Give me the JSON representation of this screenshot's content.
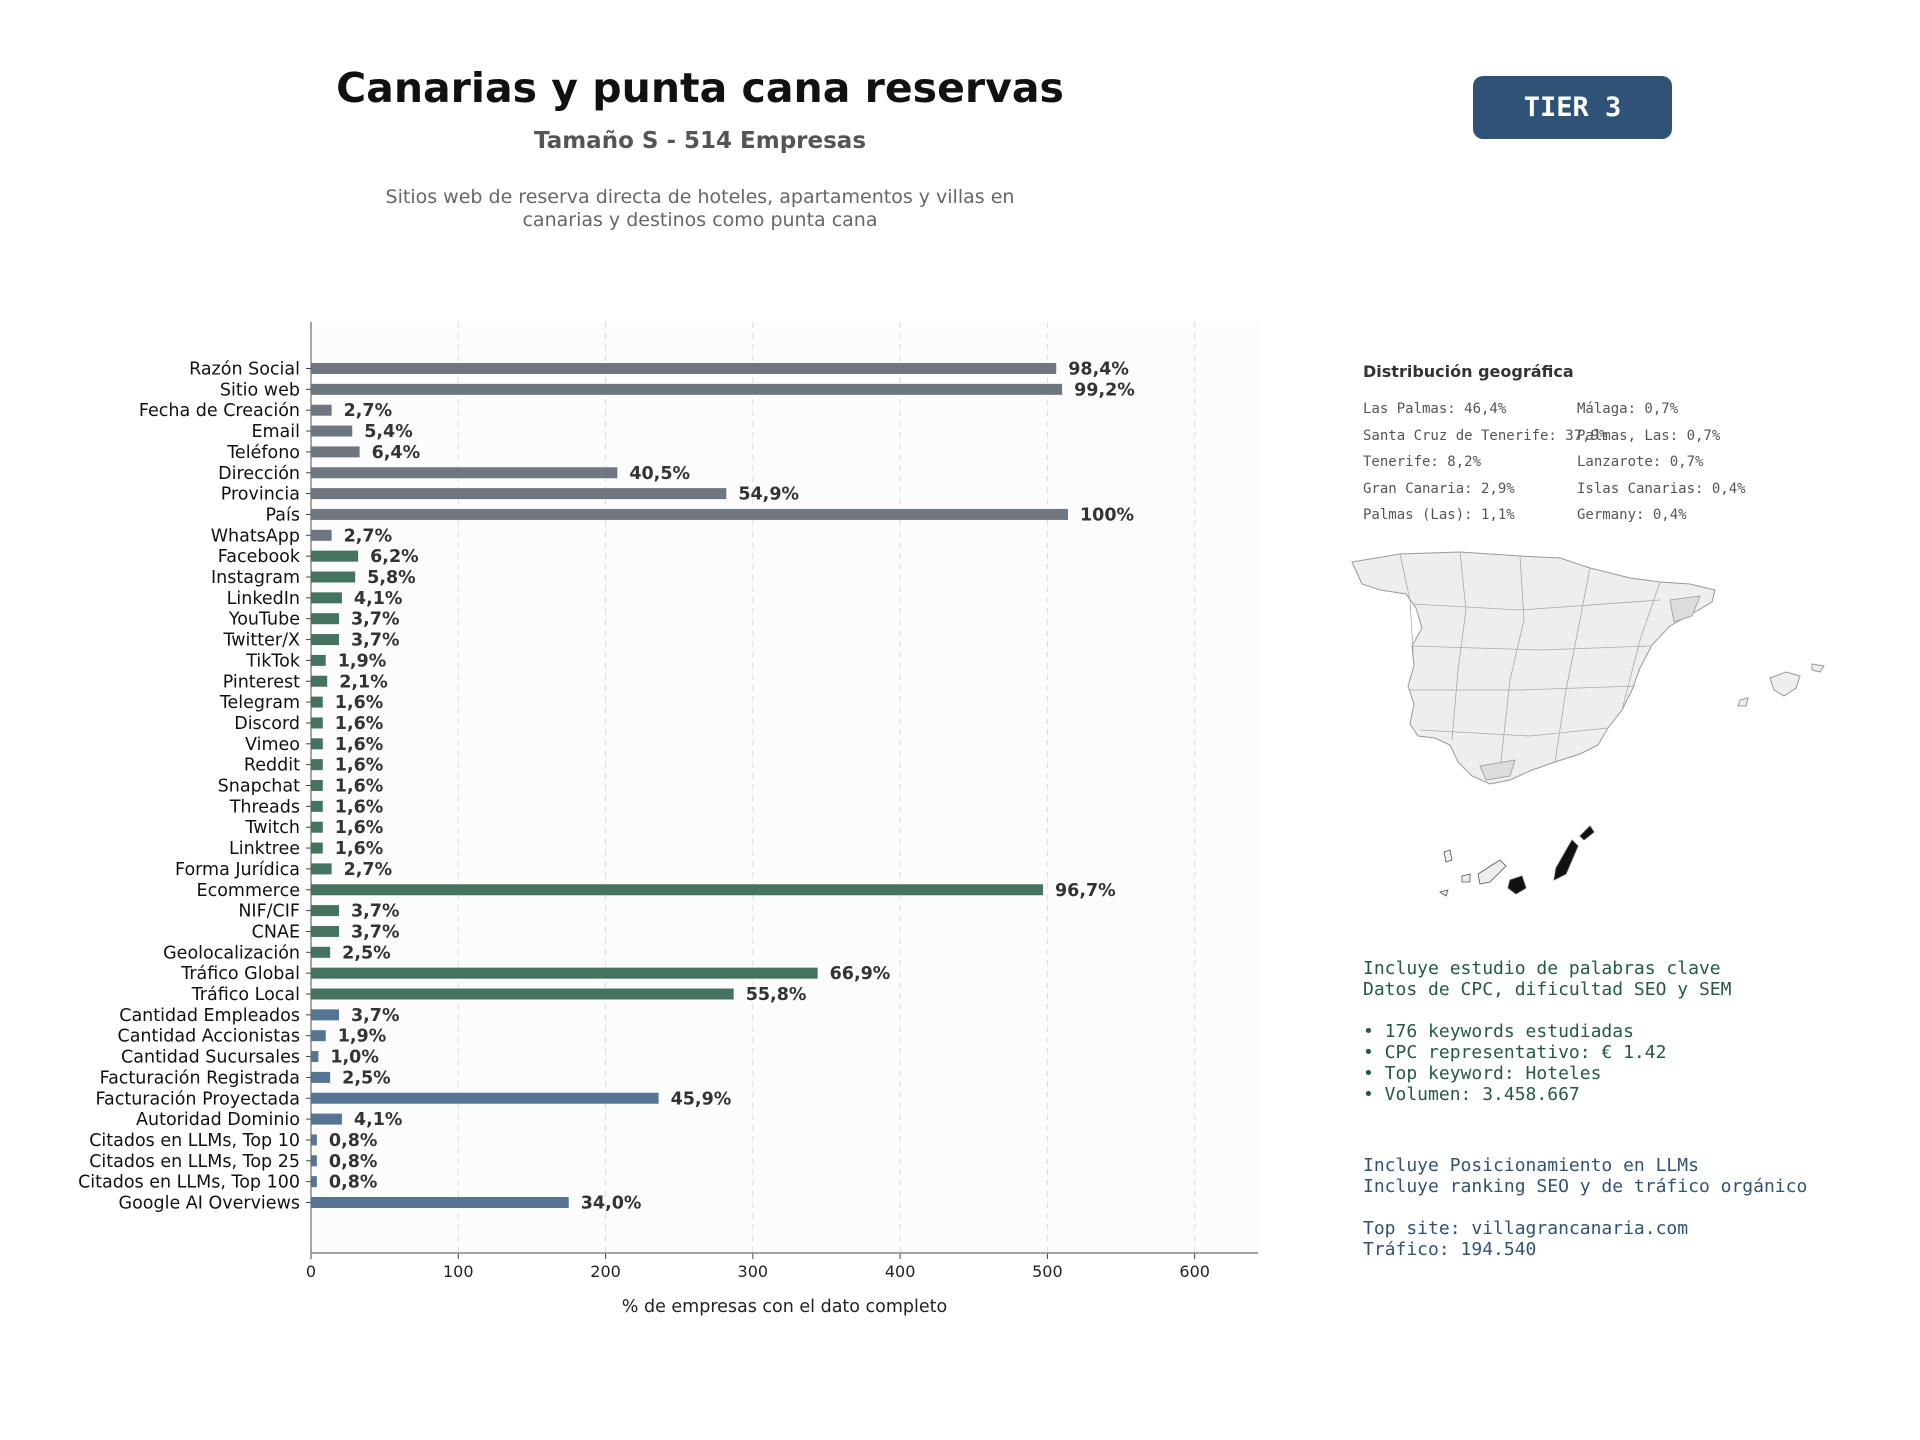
{
  "header": {
    "title": "Canarias y punta cana reservas",
    "subtitle": "Tamaño S - 514 Empresas",
    "description_line1": "Sitios web de reserva directa de hoteles, apartamentos y villas en",
    "description_line2": "canarias y destinos como punta cana",
    "tier": "TIER 3"
  },
  "colors": {
    "gray": "#6e7780",
    "green": "#44735f",
    "blue": "#567595"
  },
  "chart_data": {
    "type": "bar",
    "orientation": "horizontal",
    "xlabel": "% de empresas con el dato completo",
    "xlim": [
      0,
      643
    ],
    "xticks": [
      0,
      100,
      200,
      300,
      400,
      500,
      600
    ],
    "grid": true,
    "categories": [
      "Razón Social",
      "Sitio web",
      "Fecha de Creación",
      "Email",
      "Teléfono",
      "Dirección",
      "Provincia",
      "País",
      "WhatsApp",
      "Facebook",
      "Instagram",
      "LinkedIn",
      "YouTube",
      "Twitter/X",
      "TikTok",
      "Pinterest",
      "Telegram",
      "Discord",
      "Vimeo",
      "Reddit",
      "Snapchat",
      "Threads",
      "Twitch",
      "Linktree",
      "Forma Jurídica",
      "Ecommerce",
      "NIF/CIF",
      "CNAE",
      "Geolocalización",
      "Tráfico Global",
      "Tráfico Local",
      "Cantidad Empleados",
      "Cantidad Accionistas",
      "Cantidad Sucursales",
      "Facturación Registrada",
      "Facturación Proyectada",
      "Autoridad Dominio",
      "Citados en LLMs, Top 10",
      "Citados en LLMs, Top 25",
      "Citados en LLMs, Top 100",
      "Google AI Overviews"
    ],
    "values": [
      506,
      510,
      14,
      28,
      33,
      208,
      282,
      514,
      14,
      32,
      30,
      21,
      19,
      19,
      10,
      11,
      8,
      8,
      8,
      8,
      8,
      8,
      8,
      8,
      14,
      497,
      19,
      19,
      13,
      344,
      287,
      19,
      10,
      5,
      13,
      236,
      21,
      4,
      4,
      4,
      175
    ],
    "labels": [
      "98,4%",
      "99,2%",
      "2,7%",
      "5,4%",
      "6,4%",
      "40,5%",
      "54,9%",
      "100%",
      "2,7%",
      "6,2%",
      "5,8%",
      "4,1%",
      "3,7%",
      "3,7%",
      "1,9%",
      "2,1%",
      "1,6%",
      "1,6%",
      "1,6%",
      "1,6%",
      "1,6%",
      "1,6%",
      "1,6%",
      "1,6%",
      "2,7%",
      "96,7%",
      "3,7%",
      "3,7%",
      "2,5%",
      "66,9%",
      "55,8%",
      "3,7%",
      "1,9%",
      "1,0%",
      "2,5%",
      "45,9%",
      "4,1%",
      "0,8%",
      "0,8%",
      "0,8%",
      "34,0%"
    ],
    "groups": [
      "gray",
      "gray",
      "gray",
      "gray",
      "gray",
      "gray",
      "gray",
      "gray",
      "gray",
      "green",
      "green",
      "green",
      "green",
      "green",
      "green",
      "green",
      "green",
      "green",
      "green",
      "green",
      "green",
      "green",
      "green",
      "green",
      "green",
      "green",
      "green",
      "green",
      "green",
      "green",
      "green",
      "blue",
      "blue",
      "blue",
      "blue",
      "blue",
      "blue",
      "blue",
      "blue",
      "blue",
      "blue"
    ]
  },
  "geo": {
    "title": "Distribución geográfica",
    "items": [
      "Las Palmas: 46,4%",
      "Santa Cruz de Tenerife: 37,9%",
      "Tenerife: 8,2%",
      "Gran Canaria: 2,9%",
      "Palmas (Las): 1,1%",
      "Málaga: 0,7%",
      "Palmas, Las: 0,7%",
      "Lanzarote: 0,7%",
      "Islas Canarias: 0,4%",
      "Germany: 0,4%"
    ]
  },
  "keywords": {
    "line1": "Incluye estudio de palabras clave",
    "line2": "Datos de CPC, dificultad SEO y SEM",
    "bullet1": "• 176 keywords estudiadas",
    "bullet2": "• CPC representativo: € 1.42",
    "bullet3": "• Top keyword: Hoteles",
    "bullet4": "• Volumen: 3.458.667"
  },
  "llm": {
    "line1": "Incluye Posicionamiento en LLMs",
    "line2": "Incluye ranking SEO y de tráfico orgánico",
    "top_site": "Top site: villagrancanaria.com",
    "traffic": "Tráfico: 194.540"
  }
}
